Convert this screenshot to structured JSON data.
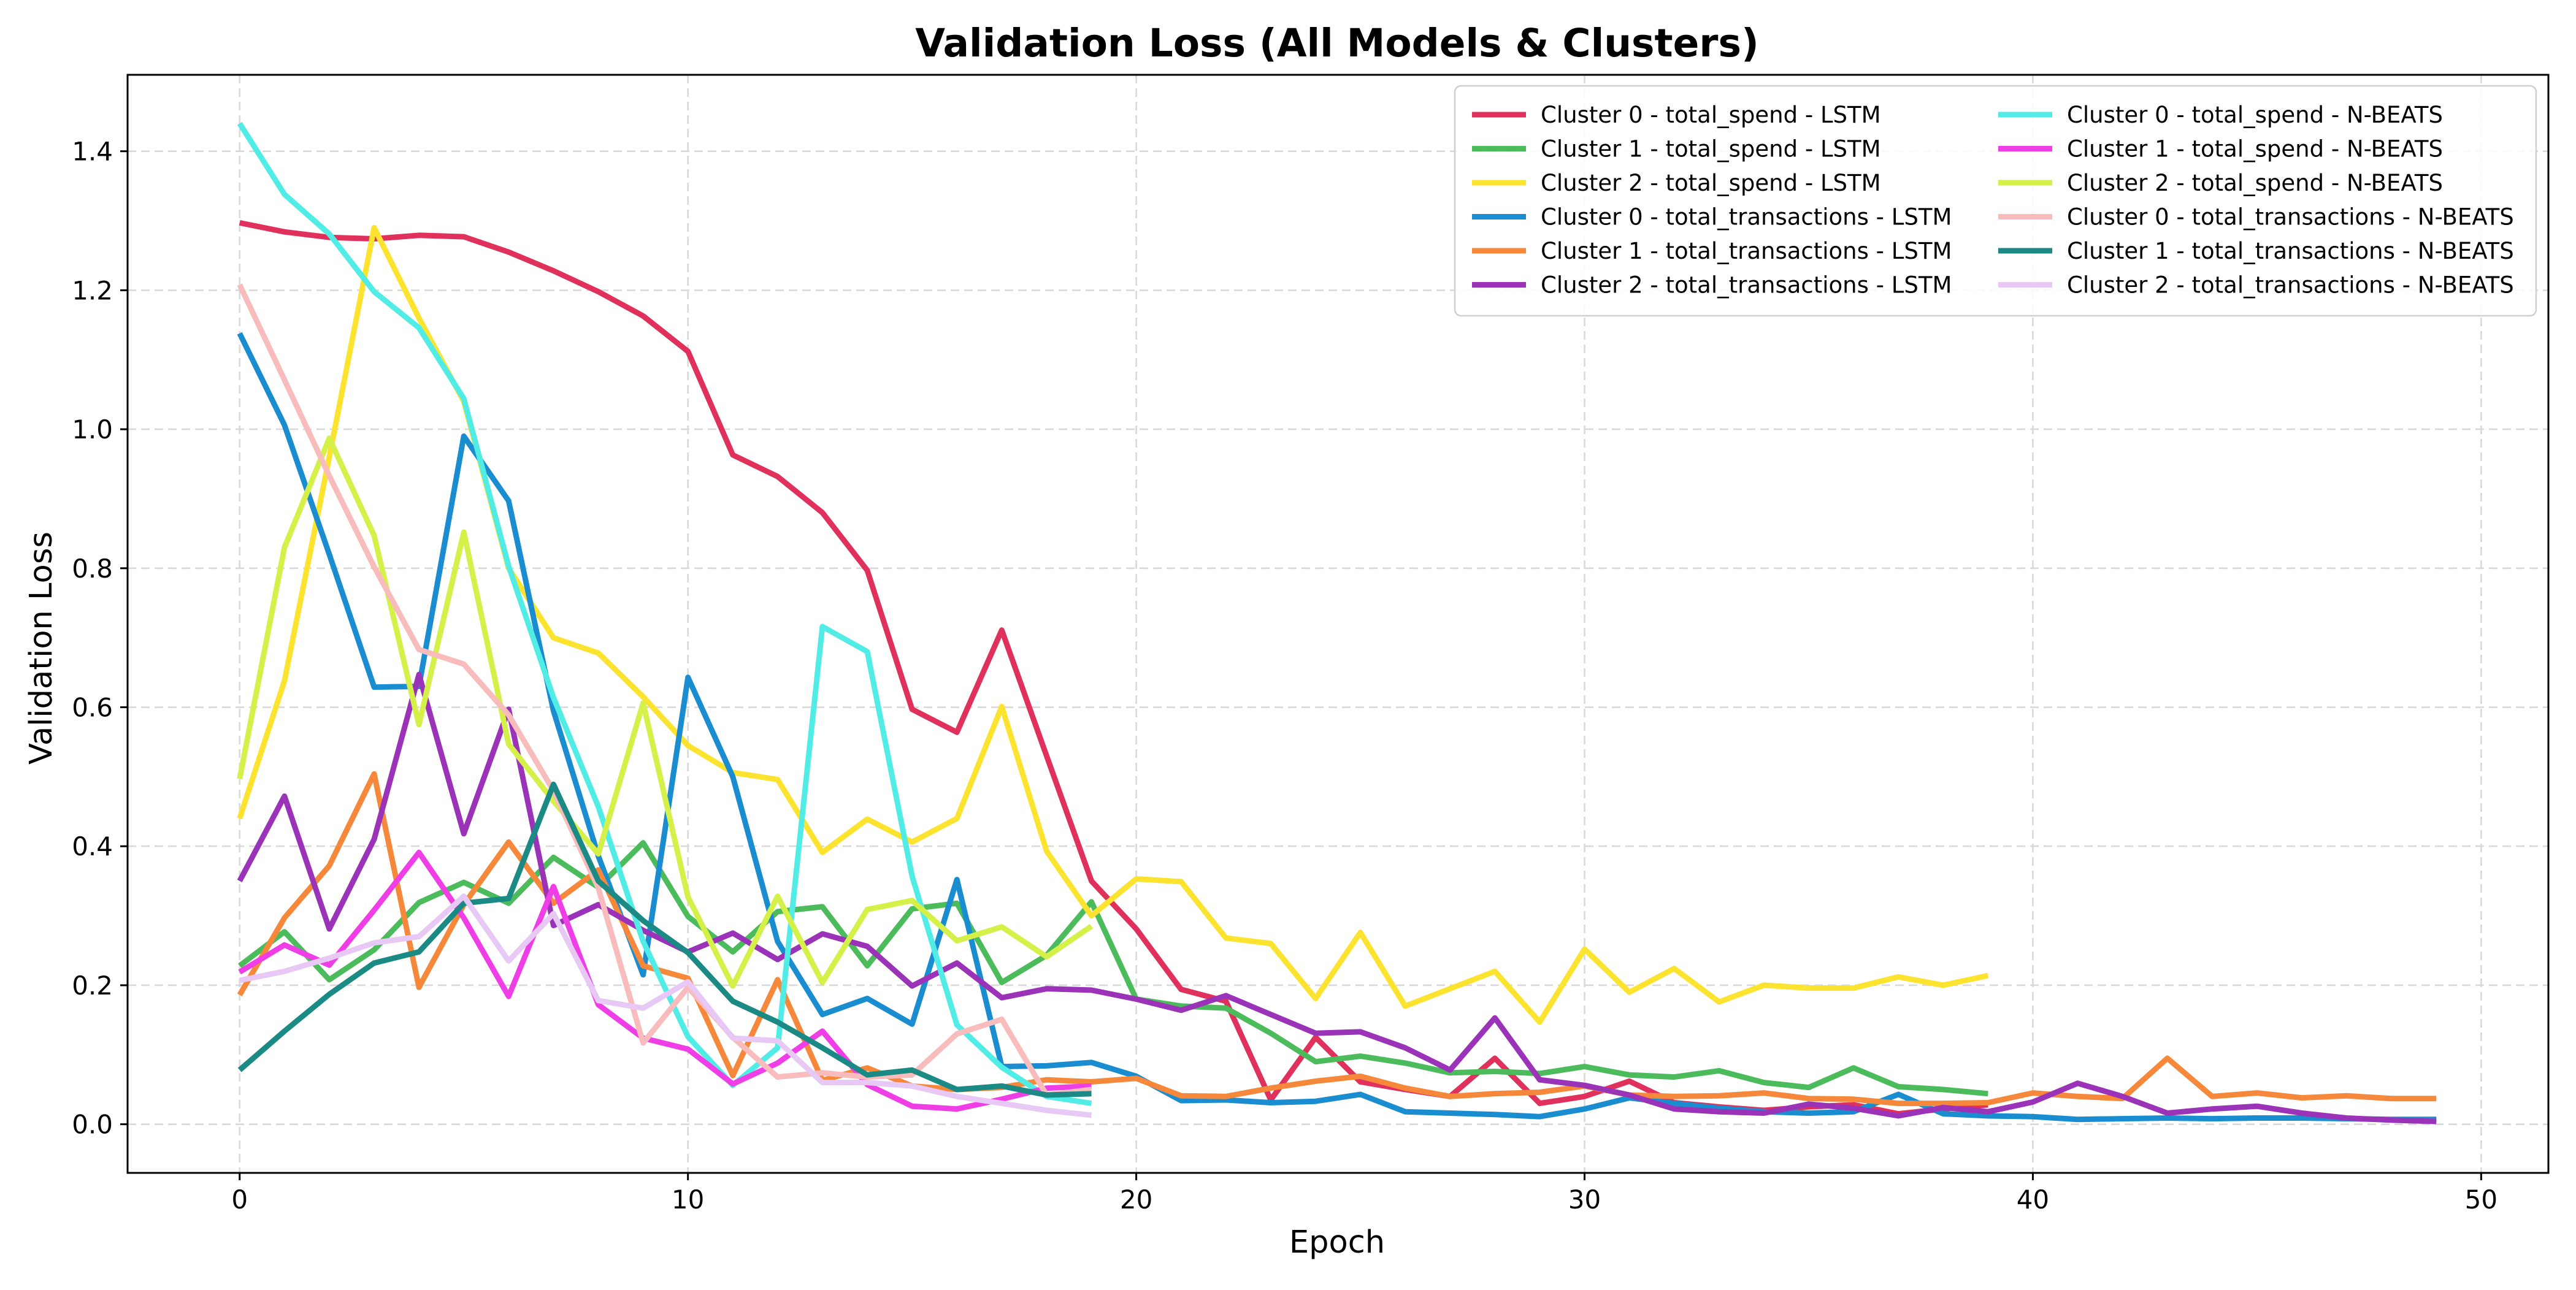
{
  "chart_data": {
    "type": "line",
    "title": "Validation Loss (All Models & Clusters)",
    "xlabel": "Epoch",
    "ylabel": "Validation Loss",
    "xlim": [
      -2.5,
      51.5
    ],
    "ylim": [
      -0.07,
      1.51
    ],
    "xticks": [
      0,
      10,
      20,
      30,
      40,
      50
    ],
    "yticks": [
      0.0,
      0.2,
      0.4,
      0.6,
      0.8,
      1.0,
      1.2,
      1.4
    ],
    "xtick_labels": [
      "0",
      "10",
      "20",
      "30",
      "40",
      "50"
    ],
    "ytick_labels": [
      "0.0",
      "0.2",
      "0.4",
      "0.6",
      "0.8",
      "1.0",
      "1.2",
      "1.4"
    ],
    "grid": true,
    "legend_position": "upper-right",
    "legend_columns": 2,
    "series": [
      {
        "name": "Cluster 0 - total_spend - LSTM",
        "color": "#e0305c",
        "values": [
          1.297,
          1.284,
          1.276,
          1.274,
          1.279,
          1.277,
          1.255,
          1.228,
          1.198,
          1.163,
          1.112,
          0.963,
          0.932,
          0.88,
          0.797,
          0.597,
          0.564,
          0.711,
          0.53,
          0.35,
          0.281,
          0.194,
          0.177,
          0.035,
          0.125,
          0.061,
          0.05,
          0.04,
          0.095,
          0.03,
          0.04,
          0.062,
          0.031,
          0.025,
          0.02,
          0.025,
          0.028,
          0.015,
          0.022,
          0.028
        ]
      },
      {
        "name": "Cluster 1 - total_spend - LSTM",
        "color": "#4cbb5c",
        "values": [
          0.228,
          0.277,
          0.208,
          0.251,
          0.319,
          0.348,
          0.318,
          0.384,
          0.341,
          0.405,
          0.299,
          0.248,
          0.306,
          0.313,
          0.228,
          0.31,
          0.318,
          0.204,
          0.243,
          0.32,
          0.18,
          0.17,
          0.167,
          0.131,
          0.09,
          0.098,
          0.088,
          0.074,
          0.076,
          0.073,
          0.083,
          0.071,
          0.068,
          0.077,
          0.06,
          0.053,
          0.081,
          0.054,
          0.05,
          0.044
        ]
      },
      {
        "name": "Cluster 2 - total_spend - LSTM",
        "color": "#fce330",
        "values": [
          0.44,
          0.638,
          0.96,
          1.29,
          1.16,
          1.04,
          0.8,
          0.7,
          0.678,
          0.615,
          0.545,
          0.506,
          0.496,
          0.391,
          0.439,
          0.406,
          0.44,
          0.601,
          0.393,
          0.3,
          0.353,
          0.349,
          0.268,
          0.26,
          0.181,
          0.276,
          0.17,
          0.195,
          0.22,
          0.147,
          0.252,
          0.19,
          0.224,
          0.176,
          0.2,
          0.196,
          0.196,
          0.212,
          0.2,
          0.214
        ]
      },
      {
        "name": "Cluster 0 - total_transactions - LSTM",
        "color": "#1a8dd0",
        "values": [
          1.138,
          1.006,
          0.82,
          0.629,
          0.63,
          0.99,
          0.897,
          0.595,
          0.386,
          0.215,
          0.643,
          0.5,
          0.263,
          0.158,
          0.181,
          0.144,
          0.352,
          0.083,
          0.084,
          0.089,
          0.069,
          0.034,
          0.035,
          0.031,
          0.033,
          0.043,
          0.018,
          0.016,
          0.014,
          0.011,
          0.022,
          0.038,
          0.03,
          0.023,
          0.018,
          0.016,
          0.018,
          0.043,
          0.015,
          0.012,
          0.011,
          0.007,
          0.008,
          0.009,
          0.008,
          0.009,
          0.009,
          0.008,
          0.007,
          0.007
        ]
      },
      {
        "name": "Cluster 1 - total_transactions - LSTM",
        "color": "#f5883a",
        "values": [
          0.186,
          0.297,
          0.372,
          0.504,
          0.197,
          0.316,
          0.406,
          0.318,
          0.366,
          0.228,
          0.21,
          0.07,
          0.208,
          0.063,
          0.081,
          0.055,
          0.05,
          0.053,
          0.064,
          0.061,
          0.066,
          0.041,
          0.04,
          0.052,
          0.062,
          0.069,
          0.052,
          0.04,
          0.044,
          0.046,
          0.055,
          0.042,
          0.04,
          0.041,
          0.045,
          0.037,
          0.036,
          0.03,
          0.03,
          0.031,
          0.045,
          0.04,
          0.037,
          0.095,
          0.04,
          0.045,
          0.038,
          0.041,
          0.037,
          0.037
        ]
      },
      {
        "name": "Cluster 2 - total_transactions - LSTM",
        "color": "#9a33b8",
        "values": [
          0.35,
          0.472,
          0.281,
          0.41,
          0.647,
          0.418,
          0.597,
          0.286,
          0.316,
          0.279,
          0.248,
          0.275,
          0.237,
          0.274,
          0.256,
          0.199,
          0.232,
          0.182,
          0.195,
          0.193,
          0.18,
          0.164,
          0.185,
          0.158,
          0.131,
          0.133,
          0.11,
          0.078,
          0.153,
          0.064,
          0.056,
          0.042,
          0.022,
          0.018,
          0.016,
          0.029,
          0.023,
          0.012,
          0.024,
          0.018,
          0.032,
          0.059,
          0.04,
          0.016,
          0.022,
          0.026,
          0.016,
          0.009,
          0.006,
          0.004
        ]
      },
      {
        "name": "Cluster 0 - total_spend - N-BEATS",
        "color": "#52ece6",
        "values": [
          1.44,
          1.338,
          1.281,
          1.198,
          1.146,
          1.044,
          0.803,
          0.614,
          0.457,
          0.263,
          0.126,
          0.056,
          0.11,
          0.716,
          0.68,
          0.357,
          0.143,
          0.082,
          0.04,
          0.03
        ]
      },
      {
        "name": "Cluster 1 - total_spend - N-BEATS",
        "color": "#f03ee6",
        "values": [
          0.219,
          0.258,
          0.229,
          0.308,
          0.391,
          0.297,
          0.184,
          0.342,
          0.172,
          0.124,
          0.108,
          0.058,
          0.088,
          0.134,
          0.057,
          0.026,
          0.022,
          0.036,
          0.052,
          0.055
        ]
      },
      {
        "name": "Cluster 2 - total_spend - N-BEATS",
        "color": "#d5f048",
        "values": [
          0.497,
          0.83,
          0.987,
          0.847,
          0.575,
          0.852,
          0.547,
          0.465,
          0.389,
          0.606,
          0.327,
          0.199,
          0.328,
          0.204,
          0.309,
          0.322,
          0.264,
          0.284,
          0.241,
          0.285
        ]
      },
      {
        "name": "Cluster 0 - total_transactions - N-BEATS",
        "color": "#f8bcbc",
        "values": [
          1.208,
          1.071,
          0.933,
          0.802,
          0.683,
          0.662,
          0.589,
          0.48,
          0.34,
          0.117,
          0.197,
          0.125,
          0.068,
          0.074,
          0.068,
          0.071,
          0.13,
          0.151,
          0.042,
          0.05
        ]
      },
      {
        "name": "Cluster 1 - total_transactions - N-BEATS",
        "color": "#1c8a84",
        "values": [
          0.078,
          0.134,
          0.187,
          0.232,
          0.248,
          0.318,
          0.325,
          0.489,
          0.35,
          0.293,
          0.247,
          0.177,
          0.147,
          0.11,
          0.071,
          0.078,
          0.05,
          0.055,
          0.042,
          0.044
        ]
      },
      {
        "name": "Cluster 2 - total_transactions - N-BEATS",
        "color": "#e8c8f5",
        "values": [
          0.207,
          0.22,
          0.239,
          0.261,
          0.27,
          0.328,
          0.235,
          0.303,
          0.178,
          0.167,
          0.205,
          0.124,
          0.12,
          0.06,
          0.06,
          0.055,
          0.04,
          0.03,
          0.02,
          0.013
        ]
      }
    ]
  }
}
